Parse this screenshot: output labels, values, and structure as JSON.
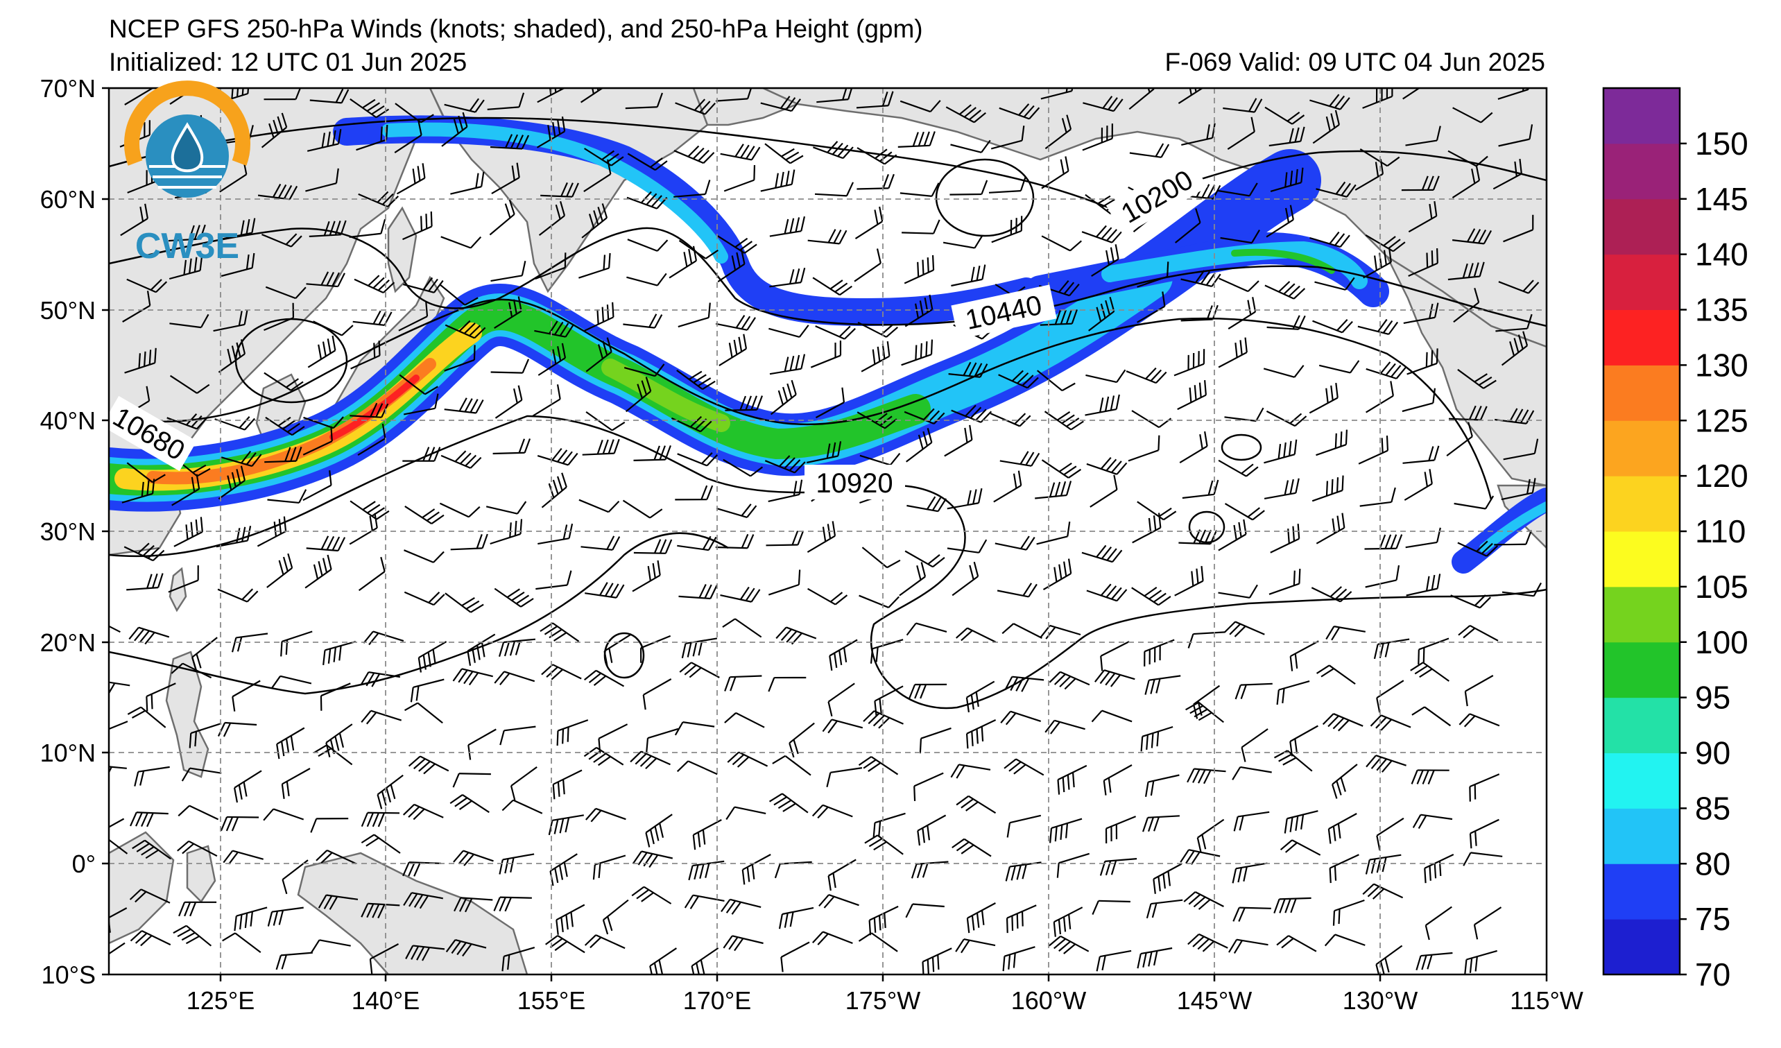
{
  "header": {
    "title": "NCEP GFS 250-hPa Winds (knots; shaded), and 250-hPa Height (gpm)",
    "initialized": "Initialized: 12 UTC 01 Jun 2025",
    "valid": "F-069  Valid: 09 UTC 04 Jun 2025"
  },
  "logo": {
    "text": "CW3E"
  },
  "axes": {
    "lat_labels": [
      "70°N",
      "60°N",
      "50°N",
      "40°N",
      "30°N",
      "20°N",
      "10°N",
      "0°",
      "10°S"
    ],
    "lon_labels": [
      "125°E",
      "140°E",
      "155°E",
      "170°E",
      "175°W",
      "160°W",
      "145°W",
      "130°W",
      "115°W"
    ]
  },
  "colorbar": {
    "labels": [
      "70",
      "75",
      "80",
      "85",
      "90",
      "95",
      "100",
      "105",
      "110",
      "120",
      "125",
      "130",
      "135",
      "140",
      "145",
      "150"
    ],
    "colors": [
      "#1d1fd0",
      "#1f3ff5",
      "#22c4f7",
      "#22f3f1",
      "#23e1a7",
      "#22c42a",
      "#75d31e",
      "#fcfc1f",
      "#fcd31f",
      "#fca51f",
      "#fb7c20",
      "#fd2222",
      "#d8203e",
      "#ad2055",
      "#9a2278",
      "#7d2a99"
    ]
  },
  "contours": {
    "labels": [
      "10200",
      "10440",
      "10680",
      "10920"
    ]
  },
  "colors": {
    "land": "#e4e4e4",
    "coast": "#6e6e6e",
    "grid": "#8a8a8a"
  }
}
